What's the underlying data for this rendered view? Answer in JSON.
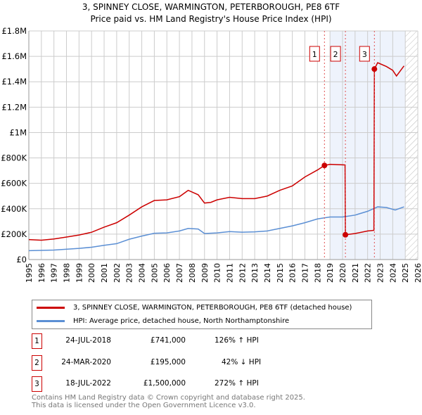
{
  "header": {
    "title": "3, SPINNEY CLOSE, WARMINGTON, PETERBOROUGH, PE8 6TF",
    "subtitle": "Price paid vs. HM Land Registry's House Price Index (HPI)"
  },
  "chart_data": {
    "type": "line",
    "title": "3, SPINNEY CLOSE, WARMINGTON, PETERBOROUGH, PE8 6TF",
    "subtitle": "Price paid vs. HM Land Registry's House Price Index (HPI)",
    "xlim": [
      1995,
      2026
    ],
    "ylim": [
      0,
      1800000
    ],
    "x_ticks": [
      "1995",
      "1996",
      "1997",
      "1998",
      "1999",
      "2000",
      "2001",
      "2002",
      "2003",
      "2004",
      "2005",
      "2006",
      "2007",
      "2008",
      "2009",
      "2010",
      "2011",
      "2012",
      "2013",
      "2014",
      "2015",
      "2016",
      "2017",
      "2018",
      "2019",
      "2020",
      "2021",
      "2022",
      "2023",
      "2024",
      "2025",
      "2026"
    ],
    "y_ticks": [
      {
        "v": 0,
        "label": "£0"
      },
      {
        "v": 200000,
        "label": "£200K"
      },
      {
        "v": 400000,
        "label": "£400K"
      },
      {
        "v": 600000,
        "label": "£600K"
      },
      {
        "v": 800000,
        "label": "£800K"
      },
      {
        "v": 1000000,
        "label": "£1M"
      },
      {
        "v": 1200000,
        "label": "£1.2M"
      },
      {
        "v": 1400000,
        "label": "£1.4M"
      },
      {
        "v": 1600000,
        "label": "£1.6M"
      },
      {
        "v": 1800000,
        "label": "£1.8M"
      }
    ],
    "grid": true,
    "shaded_range": [
      2019,
      2025
    ],
    "hatched_range": [
      2025,
      2026
    ],
    "series": [
      {
        "name": "3, SPINNEY CLOSE, WARMINGTON, PETERBOROUGH, PE8 6TF (detached house)",
        "color": "#cc0000",
        "points": [
          [
            1995,
            157000
          ],
          [
            1996,
            152000
          ],
          [
            1997,
            162000
          ],
          [
            1998,
            177000
          ],
          [
            1999,
            193000
          ],
          [
            2000,
            215000
          ],
          [
            2001,
            255000
          ],
          [
            2002,
            290000
          ],
          [
            2003,
            350000
          ],
          [
            2004,
            415000
          ],
          [
            2005,
            465000
          ],
          [
            2006,
            470000
          ],
          [
            2007,
            495000
          ],
          [
            2007.7,
            545000
          ],
          [
            2008.5,
            510000
          ],
          [
            2009,
            445000
          ],
          [
            2009.5,
            450000
          ],
          [
            2010,
            470000
          ],
          [
            2011,
            490000
          ],
          [
            2012,
            480000
          ],
          [
            2013,
            480000
          ],
          [
            2014,
            500000
          ],
          [
            2015,
            545000
          ],
          [
            2016,
            580000
          ],
          [
            2017,
            650000
          ],
          [
            2018,
            705000
          ],
          [
            2018.56,
            741000
          ],
          [
            2019,
            750000
          ],
          [
            2020.2,
            745000
          ],
          [
            2020.23,
            195000
          ],
          [
            2021,
            205000
          ],
          [
            2022,
            225000
          ],
          [
            2022.5,
            230000
          ],
          [
            2022.54,
            1500000
          ],
          [
            2022.8,
            1550000
          ],
          [
            2023.5,
            1520000
          ],
          [
            2024,
            1490000
          ],
          [
            2024.3,
            1445000
          ],
          [
            2024.9,
            1525000
          ]
        ]
      },
      {
        "name": "HPI: Average price, detached house, North Northamptonshire",
        "color": "#5b8fd4",
        "points": [
          [
            1995,
            70000
          ],
          [
            1997,
            75000
          ],
          [
            1999,
            88000
          ],
          [
            2000,
            97000
          ],
          [
            2001,
            112000
          ],
          [
            2002,
            125000
          ],
          [
            2003,
            160000
          ],
          [
            2004,
            185000
          ],
          [
            2005,
            207000
          ],
          [
            2006,
            210000
          ],
          [
            2007,
            225000
          ],
          [
            2007.7,
            245000
          ],
          [
            2008.5,
            240000
          ],
          [
            2009,
            205000
          ],
          [
            2010,
            210000
          ],
          [
            2011,
            220000
          ],
          [
            2012,
            215000
          ],
          [
            2013,
            218000
          ],
          [
            2014,
            225000
          ],
          [
            2015,
            245000
          ],
          [
            2016,
            265000
          ],
          [
            2017,
            290000
          ],
          [
            2018,
            320000
          ],
          [
            2019,
            335000
          ],
          [
            2020,
            335000
          ],
          [
            2021,
            350000
          ],
          [
            2022,
            380000
          ],
          [
            2022.8,
            415000
          ],
          [
            2023.5,
            410000
          ],
          [
            2024.2,
            390000
          ],
          [
            2024.9,
            415000
          ]
        ]
      }
    ],
    "sales": [
      {
        "id": "1",
        "x": 2018.56,
        "y": 741000
      },
      {
        "id": "2",
        "x": 2020.23,
        "y": 195000
      },
      {
        "id": "3",
        "x": 2022.54,
        "y": 1500000
      }
    ]
  },
  "legend": {
    "items": [
      {
        "label": "3, SPINNEY CLOSE, WARMINGTON, PETERBOROUGH, PE8 6TF (detached house)",
        "color": "#cc0000"
      },
      {
        "label": "HPI: Average price, detached house, North Northamptonshire",
        "color": "#5b8fd4"
      }
    ]
  },
  "transactions": [
    {
      "id": "1",
      "date": "24-JUL-2018",
      "price": "£741,000",
      "hpi": "126% ↑ HPI"
    },
    {
      "id": "2",
      "date": "24-MAR-2020",
      "price": "£195,000",
      "hpi": "42% ↓ HPI"
    },
    {
      "id": "3",
      "date": "18-JUL-2022",
      "price": "£1,500,000",
      "hpi": "272% ↑ HPI"
    }
  ],
  "footer": {
    "line1": "Contains HM Land Registry data © Crown copyright and database right 2025.",
    "line2": "This data is licensed under the Open Government Licence v3.0."
  }
}
